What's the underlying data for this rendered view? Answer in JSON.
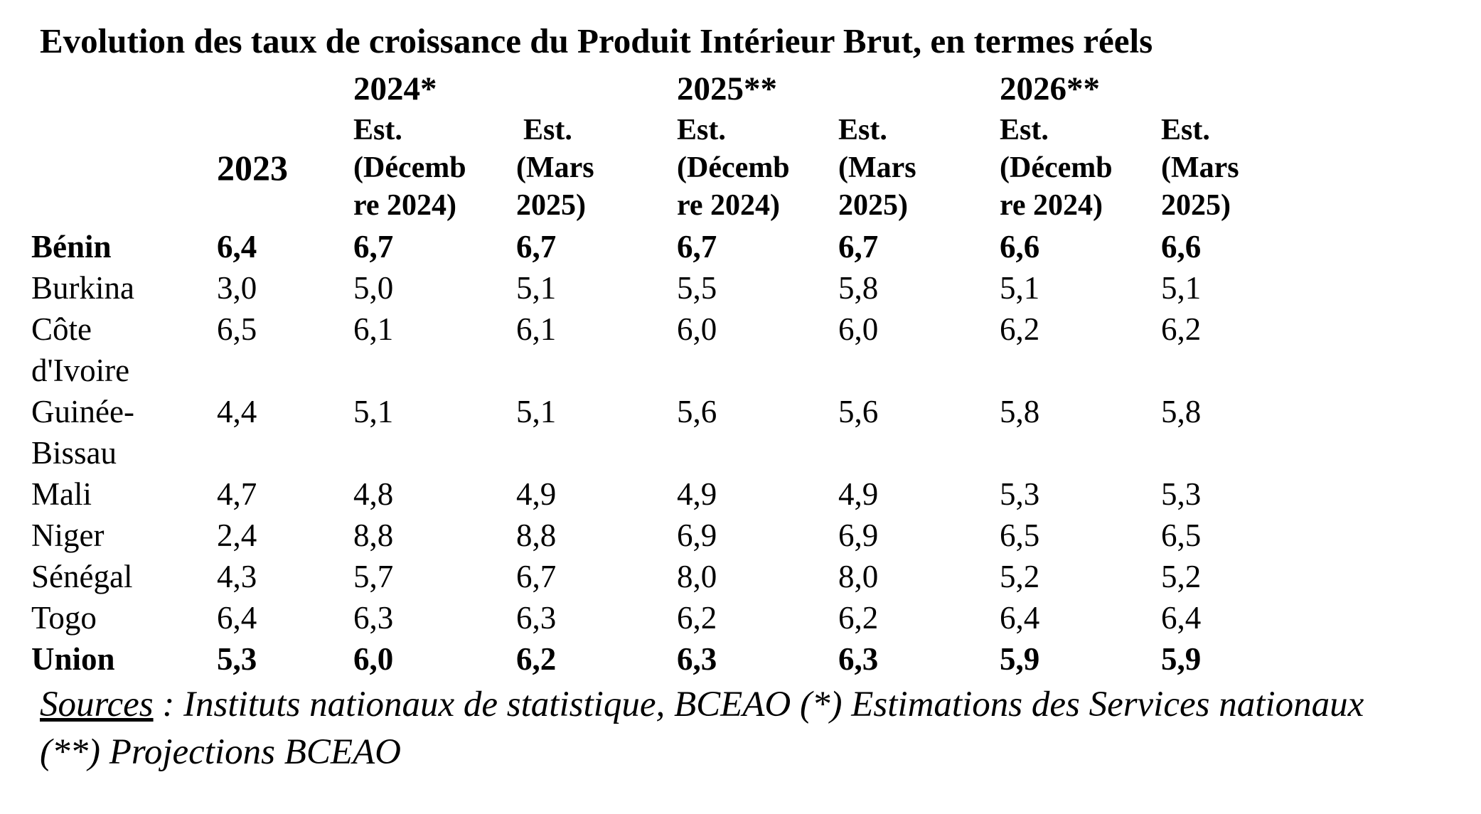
{
  "title": "Evolution des taux de croissance du Produit Intérieur Brut, en termes réels",
  "header": {
    "year_groups": [
      "2024*",
      "2025**",
      "2026**"
    ],
    "first_year": "2023",
    "sub_columns": [
      [
        "Est.",
        "(Décemb",
        "re 2024)"
      ],
      [
        "Est.",
        "(Mars",
        "2025)"
      ],
      [
        "Est.",
        "(Décemb",
        "re 2024)"
      ],
      [
        "Est.",
        "(Mars",
        "2025)"
      ],
      [
        "Est.",
        "(Décemb",
        "re 2024)"
      ],
      [
        "Est.",
        "(Mars",
        "2025)"
      ]
    ]
  },
  "rows": [
    {
      "country": "Bénin",
      "bold": true,
      "values": [
        "6,4",
        "6,7",
        "6,7",
        "6,7",
        "6,7",
        "6,6",
        "6,6"
      ]
    },
    {
      "country": "Burkina",
      "bold": false,
      "values": [
        "3,0",
        "5,0",
        "5,1",
        "5,5",
        "5,8",
        "5,1",
        "5,1"
      ]
    },
    {
      "country": "Côte d'Ivoire",
      "bold": false,
      "values": [
        "6,5",
        "6,1",
        "6,1",
        "6,0",
        "6,0",
        "6,2",
        "6,2"
      ]
    },
    {
      "country": "Guinée-Bissau",
      "bold": false,
      "values": [
        "4,4",
        "5,1",
        "5,1",
        "5,6",
        "5,6",
        "5,8",
        "5,8"
      ]
    },
    {
      "country": "Mali",
      "bold": false,
      "values": [
        "4,7",
        "4,8",
        "4,9",
        "4,9",
        "4,9",
        "5,3",
        "5,3"
      ]
    },
    {
      "country": "Niger",
      "bold": false,
      "values": [
        "2,4",
        "8,8",
        "8,8",
        "6,9",
        "6,9",
        "6,5",
        "6,5"
      ]
    },
    {
      "country": "Sénégal",
      "bold": false,
      "values": [
        "4,3",
        "5,7",
        "6,7",
        "8,0",
        "8,0",
        "5,2",
        "5,2"
      ]
    },
    {
      "country": "Togo",
      "bold": false,
      "values": [
        "6,4",
        "6,3",
        "6,3",
        "6,2",
        "6,2",
        "6,4",
        "6,4"
      ]
    },
    {
      "country": "Union",
      "bold": true,
      "values": [
        "5,3",
        "6,0",
        "6,2",
        "6,3",
        "6,3",
        "5,9",
        "5,9"
      ]
    }
  ],
  "sources": {
    "label": "Sources",
    "text": " : Instituts nationaux de statistique, BCEAO (*) Estimations des Services nationaux (**) Projections BCEAO"
  }
}
